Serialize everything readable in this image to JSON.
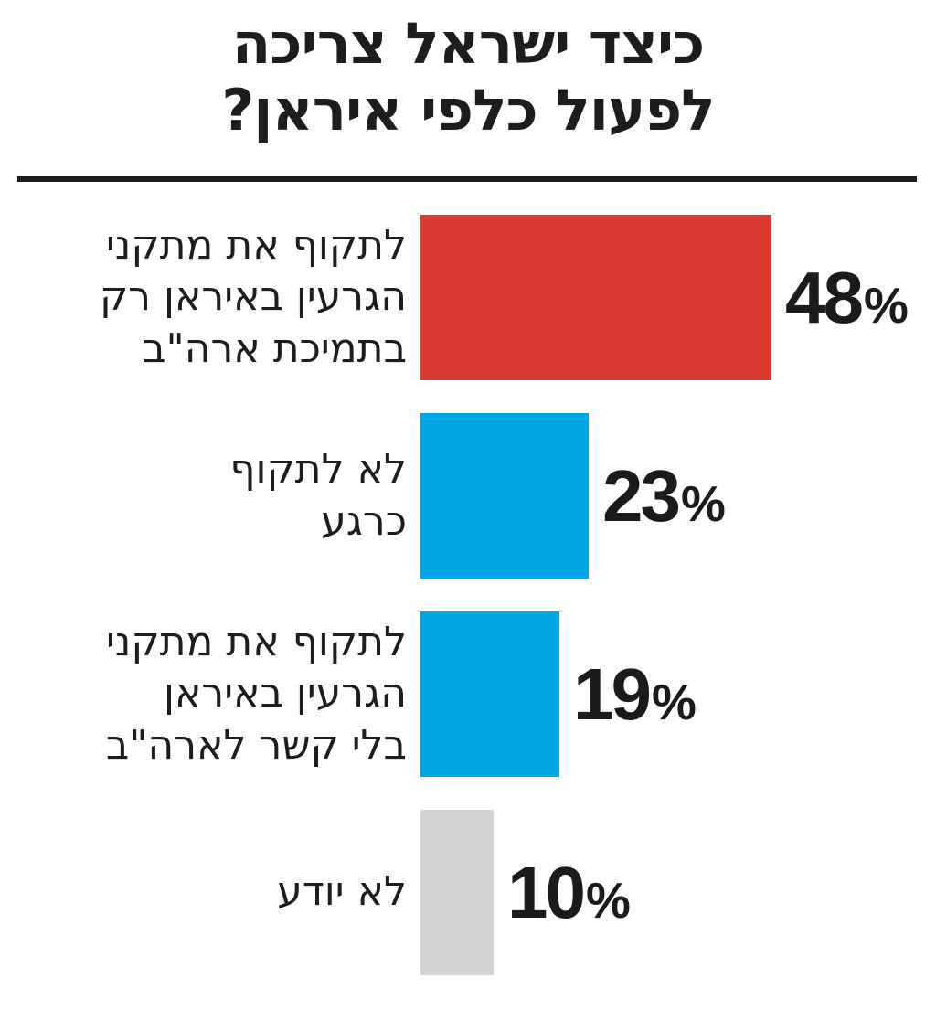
{
  "chart": {
    "title": "כיצד ישראל צריכה\nלפעול כלפי איראן?",
    "unit": "%",
    "rows": [
      {
        "label": "לתקוף את מתקני\nהגרעין באיראן רק\nבתמיכת ארה\"ב",
        "value": 48,
        "color": "#d93a33"
      },
      {
        "label": "לא לתקוף\nכרגע",
        "value": 23,
        "color": "#00a7e5"
      },
      {
        "label": "לתקוף את מתקני\nהגרעין באיראן\nבלי קשר לארה\"ב",
        "value": 19,
        "color": "#00a7e5"
      },
      {
        "label": "לא יודע",
        "value": 10,
        "color": "#d1d3d4"
      }
    ]
  },
  "chart_data": {
    "type": "bar",
    "orientation": "horizontal",
    "direction": "rtl",
    "title": "כיצד ישראל צריכה לפעול כלפי איראן?",
    "categories": [
      "לתקוף את מתקני הגרעין באיראן רק בתמיכת ארה\"ב",
      "לא לתקוף כרגע",
      "לתקוף את מתקני הגרעין באיראן בלי קשר לארה\"ב",
      "לא יודע"
    ],
    "values": [
      48,
      23,
      19,
      10
    ],
    "unit": "%",
    "bar_colors": [
      "#d93a33",
      "#00a7e5",
      "#00a7e5",
      "#d1d3d4"
    ],
    "xlabel": "",
    "ylabel": "",
    "xlim": [
      0,
      50
    ],
    "grid": false,
    "legend": false,
    "value_labels": "outside-end"
  },
  "colors": {
    "background": "#ffffff",
    "text": "#1d1d1b",
    "separator": "#1d1d1d",
    "accent_red": "#d93a33",
    "accent_blue": "#00a7e5",
    "neutral_gray": "#d1d3d4"
  }
}
